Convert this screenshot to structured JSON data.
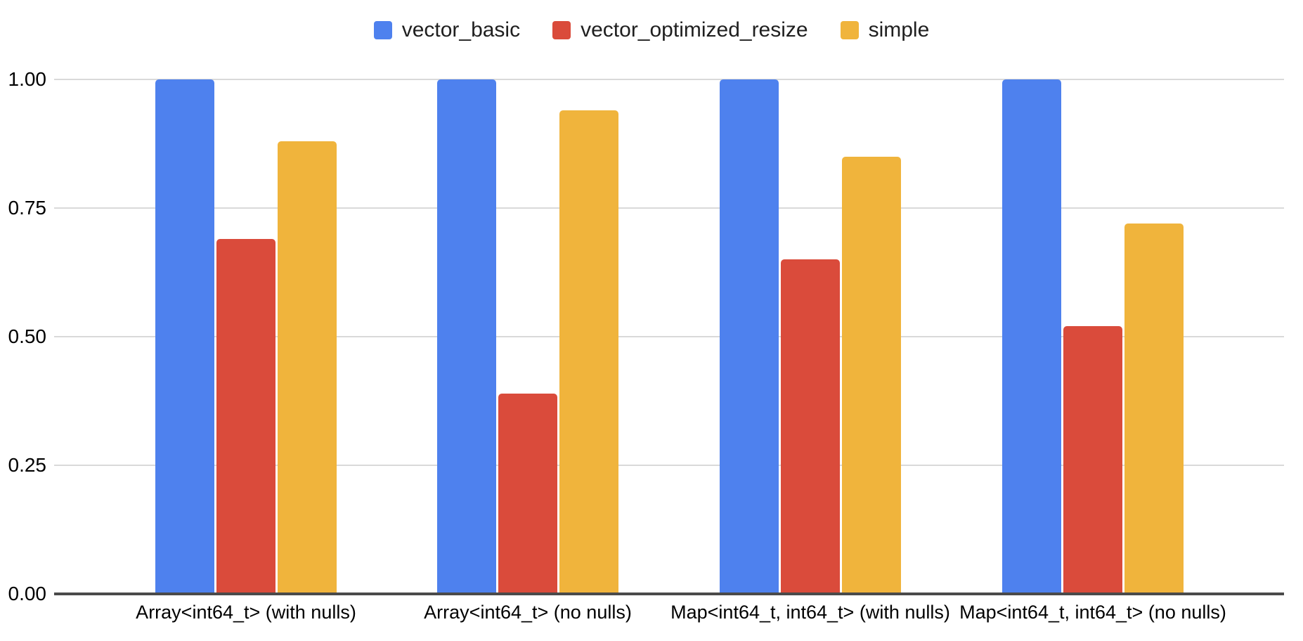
{
  "chart_data": {
    "type": "bar",
    "title": "",
    "categories": [
      "Array<int64_t> (with nulls)",
      "Array<int64_t> (no nulls)",
      "Map<int64_t, int64_t> (with nulls)",
      "Map<int64_t, int64_t> (no nulls)"
    ],
    "series": [
      {
        "name": "vector_basic",
        "color": "#4E81EE",
        "values": [
          1.0,
          1.0,
          1.0,
          1.0
        ]
      },
      {
        "name": "vector_optimized_resize",
        "color": "#DA4B3B",
        "values": [
          0.69,
          0.39,
          0.65,
          0.52
        ]
      },
      {
        "name": "simple",
        "color": "#F0B43C",
        "values": [
          0.88,
          0.94,
          0.85,
          0.72
        ]
      }
    ],
    "xlabel": "",
    "ylabel": "",
    "ylim": [
      0,
      1.0
    ],
    "y_ticks": [
      0.0,
      0.25,
      0.5,
      0.75,
      1.0
    ],
    "y_tick_labels": [
      "0.00",
      "0.25",
      "0.50",
      "0.75",
      "1.00"
    ],
    "grid": true,
    "legend_position": "top",
    "colors": {
      "grid_line": "#D9D9D9",
      "axis_line": "#4A4A4A",
      "text": "#000000",
      "background": "#FFFFFF"
    }
  }
}
